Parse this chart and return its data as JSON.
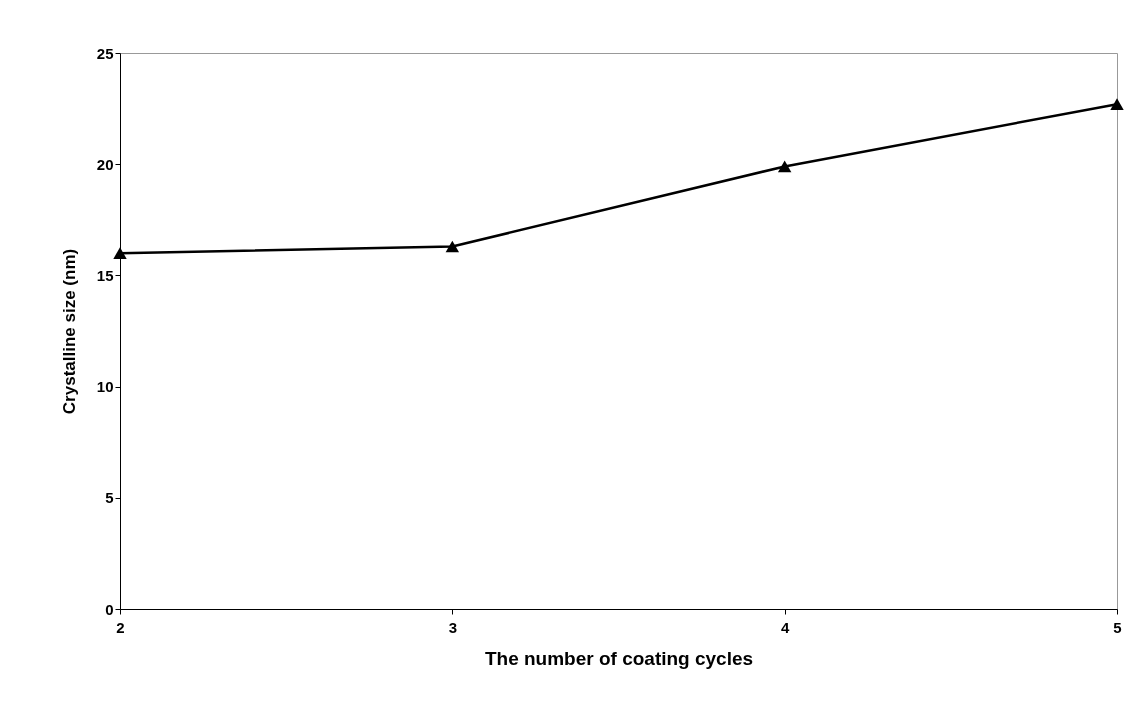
{
  "chart_data": {
    "type": "line",
    "xlabel": "The number of coating cycles",
    "ylabel": "Crystalline size (nm)",
    "x": [
      2,
      3,
      4,
      5
    ],
    "series": [
      {
        "color": "#000000",
        "values": [
          16.0,
          16.3,
          19.9,
          22.7
        ]
      }
    ],
    "xlim": [
      2,
      5
    ],
    "xticks": [
      2,
      3,
      4,
      5
    ],
    "ylim": [
      0,
      25
    ],
    "yticks": [
      0,
      5,
      10,
      15,
      20,
      25
    ],
    "grid": false,
    "legend": false,
    "marker": "triangle",
    "line_style": "solid"
  }
}
